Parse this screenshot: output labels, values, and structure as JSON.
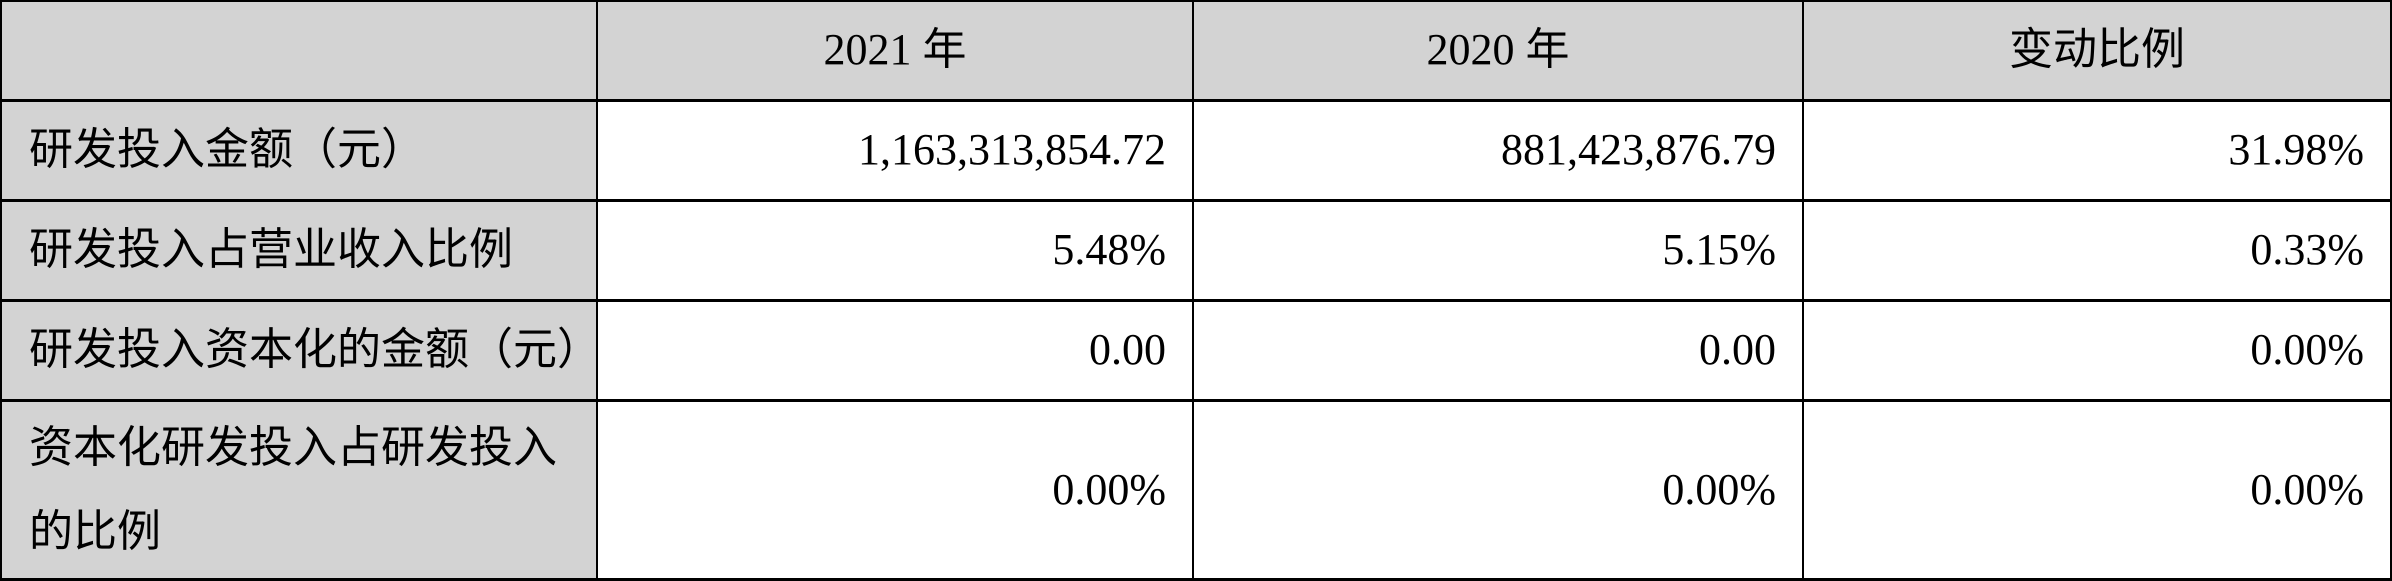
{
  "table": {
    "title_semantic": "rd-investment-comparison-table",
    "headers": {
      "corner": "",
      "col_2021": "2021 年",
      "col_2020": "2020 年",
      "col_change": "变动比例"
    },
    "rows": [
      {
        "label": "研发投入金额（元）",
        "v2021": "1,163,313,854.72",
        "v2020": "881,423,876.79",
        "change": "31.98%"
      },
      {
        "label": "研发投入占营业收入比例",
        "v2021": "5.48%",
        "v2020": "5.15%",
        "change": "0.33%"
      },
      {
        "label": "研发投入资本化的金额（元）",
        "v2021": "0.00",
        "v2020": "0.00",
        "change": "0.00%"
      },
      {
        "label": "资本化研发投入占研发投入的比例",
        "v2021": "0.00%",
        "v2020": "0.00%",
        "change": "0.00%"
      }
    ],
    "colors": {
      "header_bg": "#d3d3d3",
      "label_bg": "#d3d3d3",
      "value_bg": "#ffffff",
      "grid_line": "#000000",
      "text": "#000000"
    }
  },
  "chart_data": {
    "type": "table",
    "columns": [
      "",
      "2021 年",
      "2020 年",
      "变动比例"
    ],
    "cells": [
      [
        "研发投入金额（元）",
        "1,163,313,854.72",
        "881,423,876.79",
        "31.98%"
      ],
      [
        "研发投入占营业收入比例",
        "5.48%",
        "5.15%",
        "0.33%"
      ],
      [
        "研发投入资本化的金额（元）",
        "0.00",
        "0.00",
        "0.00%"
      ],
      [
        "资本化研发投入占研发投入的比例",
        "0.00%",
        "0.00%",
        "0.00%"
      ]
    ]
  }
}
